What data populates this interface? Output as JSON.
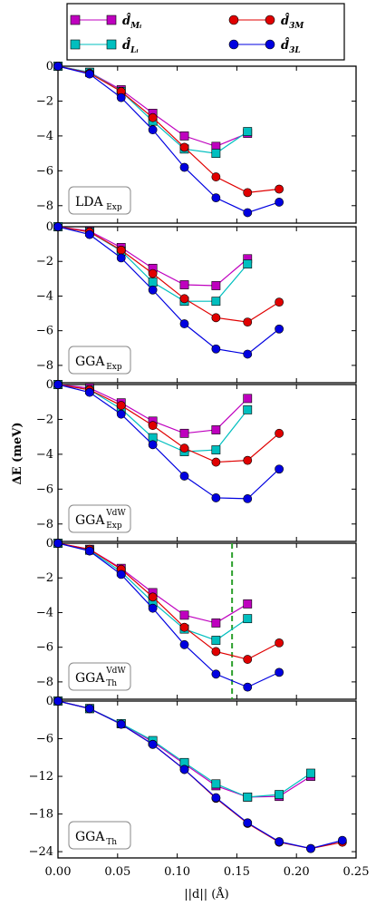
{
  "chart_data": {
    "type": "line",
    "x_values": [
      0.0,
      0.0265,
      0.053,
      0.0795,
      0.106,
      0.1325,
      0.159,
      0.1855,
      0.212,
      0.2385
    ],
    "xlabel": "||d|| (Å)",
    "ylabel": "ΔE (meV)",
    "xlim": [
      0.0,
      0.25
    ],
    "x_ticks": [
      "0.00",
      "0.05",
      "0.10",
      "0.15",
      "0.20",
      "0.25"
    ],
    "legend": {
      "placement": "top, outside the plots",
      "entries": [
        {
          "name": "d̂_{M_i}",
          "main": "d̂",
          "sub": "Mᵢ",
          "color": "#bf00bf",
          "marker": "square"
        },
        {
          "name": "d̂_{L_i}",
          "main": "d̂",
          "sub": "Lᵢ",
          "color": "#00bfbf",
          "marker": "square"
        },
        {
          "name": "d̂_{3M}",
          "main": "d̂",
          "sub": "3M",
          "color": "#e00000",
          "marker": "circle"
        },
        {
          "name": "d̂_{3L}",
          "main": "d̂",
          "sub": "3L",
          "color": "#0000e0",
          "marker": "circle"
        }
      ]
    },
    "panels": [
      {
        "label_main": "LDA",
        "label_sub": "Exp",
        "label_sup": "",
        "ylim": [
          -9,
          0
        ],
        "y_ticks": [
          "0",
          "−2",
          "−4",
          "−6",
          "−8"
        ],
        "y_tick_values": [
          0,
          -2,
          -4,
          -6,
          -8
        ],
        "vline": null,
        "series": [
          {
            "name": "d̂_{M_i}",
            "values": [
              0,
              -0.35,
              -1.35,
              -2.7,
              -4.0,
              -4.6,
              -3.85
            ]
          },
          {
            "name": "d̂_{L_i}",
            "values": [
              0,
              -0.35,
              -1.45,
              -3.15,
              -4.75,
              -5.0,
              -3.75
            ]
          },
          {
            "name": "d̂_{3M}",
            "values": [
              0,
              -0.4,
              -1.45,
              -2.95,
              -4.65,
              -6.35,
              -7.25,
              -7.05
            ]
          },
          {
            "name": "d̂_{3L}",
            "values": [
              0,
              -0.45,
              -1.8,
              -3.65,
              -5.8,
              -7.55,
              -8.4,
              -7.8
            ]
          }
        ]
      },
      {
        "label_main": "GGA",
        "label_sub": "Exp",
        "label_sup": "",
        "ylim": [
          -9,
          0
        ],
        "y_ticks": [
          "0",
          "−2",
          "−4",
          "−6",
          "−8"
        ],
        "y_tick_values": [
          0,
          -2,
          -4,
          -6,
          -8
        ],
        "vline": null,
        "series": [
          {
            "name": "d̂_{M_i}",
            "values": [
              0,
              -0.25,
              -1.2,
              -2.4,
              -3.35,
              -3.4,
              -1.85
            ]
          },
          {
            "name": "d̂_{L_i}",
            "values": [
              0,
              -0.3,
              -1.4,
              -3.2,
              -4.3,
              -4.3,
              -2.15
            ]
          },
          {
            "name": "d̂_{3M}",
            "values": [
              0,
              -0.3,
              -1.35,
              -2.7,
              -4.15,
              -5.25,
              -5.5,
              -4.35
            ]
          },
          {
            "name": "d̂_{3L}",
            "values": [
              0,
              -0.45,
              -1.8,
              -3.65,
              -5.6,
              -7.05,
              -7.35,
              -5.9
            ]
          }
        ]
      },
      {
        "label_main": "GGA",
        "label_sub": "Exp",
        "label_sup": "VdW",
        "ylim": [
          -9,
          0
        ],
        "y_ticks": [
          "0",
          "−2",
          "−4",
          "−6",
          "−8"
        ],
        "y_tick_values": [
          0,
          -2,
          -4,
          -6,
          -8
        ],
        "vline": null,
        "series": [
          {
            "name": "d̂_{M_i}",
            "values": [
              0,
              -0.2,
              -1.05,
              -2.1,
              -2.8,
              -2.6,
              -0.8
            ]
          },
          {
            "name": "d̂_{L_i}",
            "values": [
              0,
              -0.3,
              -1.4,
              -3.05,
              -3.85,
              -3.75,
              -1.45
            ]
          },
          {
            "name": "d̂_{3M}",
            "values": [
              0,
              -0.3,
              -1.2,
              -2.35,
              -3.65,
              -4.45,
              -4.35,
              -2.8
            ]
          },
          {
            "name": "d̂_{3L}",
            "values": [
              0,
              -0.45,
              -1.7,
              -3.45,
              -5.25,
              -6.5,
              -6.55,
              -4.85
            ]
          }
        ]
      },
      {
        "label_main": "GGA",
        "label_sub": "Th",
        "label_sup": "VdW",
        "ylim": [
          -9,
          0
        ],
        "y_ticks": [
          "0",
          "−2",
          "−4",
          "−6",
          "−8"
        ],
        "y_tick_values": [
          0,
          -2,
          -4,
          -6,
          -8
        ],
        "vline": 0.146,
        "series": [
          {
            "name": "d̂_{M_i}",
            "values": [
              0,
              -0.35,
              -1.45,
              -2.85,
              -4.15,
              -4.6,
              -3.5
            ]
          },
          {
            "name": "d̂_{L_i}",
            "values": [
              0,
              -0.4,
              -1.65,
              -3.4,
              -4.95,
              -5.6,
              -4.35
            ]
          },
          {
            "name": "d̂_{3M}",
            "values": [
              0,
              -0.35,
              -1.5,
              -3.1,
              -4.85,
              -6.25,
              -6.7,
              -5.75
            ]
          },
          {
            "name": "d̂_{3L}",
            "values": [
              0,
              -0.45,
              -1.8,
              -3.75,
              -5.85,
              -7.55,
              -8.3,
              -7.45
            ]
          }
        ]
      },
      {
        "label_main": "GGA",
        "label_sub": "Th",
        "label_sup": "",
        "ylim": [
          -25,
          0
        ],
        "y_ticks": [
          "0",
          "−6",
          "−12",
          "−18",
          "−24"
        ],
        "y_tick_values": [
          0,
          -6,
          -12,
          -18,
          -24
        ],
        "vline": null,
        "series": [
          {
            "name": "d̂_{M_i}",
            "values": [
              0,
              -1.2,
              -3.6,
              -6.5,
              -10.0,
              -13.5,
              -15.3,
              -15.2,
              -12.0
            ]
          },
          {
            "name": "d̂_{L_i}",
            "values": [
              0,
              -1.2,
              -3.6,
              -6.3,
              -9.8,
              -13.2,
              -15.3,
              -14.9,
              -11.5
            ]
          },
          {
            "name": "d̂_{3M}",
            "values": [
              0,
              -1.2,
              -3.7,
              -6.9,
              -10.9,
              -15.5,
              -19.5,
              -22.5,
              -23.5,
              -22.5
            ]
          },
          {
            "name": "d̂_{3L}",
            "values": [
              0,
              -1.2,
              -3.7,
              -6.9,
              -10.9,
              -15.4,
              -19.4,
              -22.4,
              -23.5,
              -22.2
            ]
          }
        ]
      }
    ]
  }
}
